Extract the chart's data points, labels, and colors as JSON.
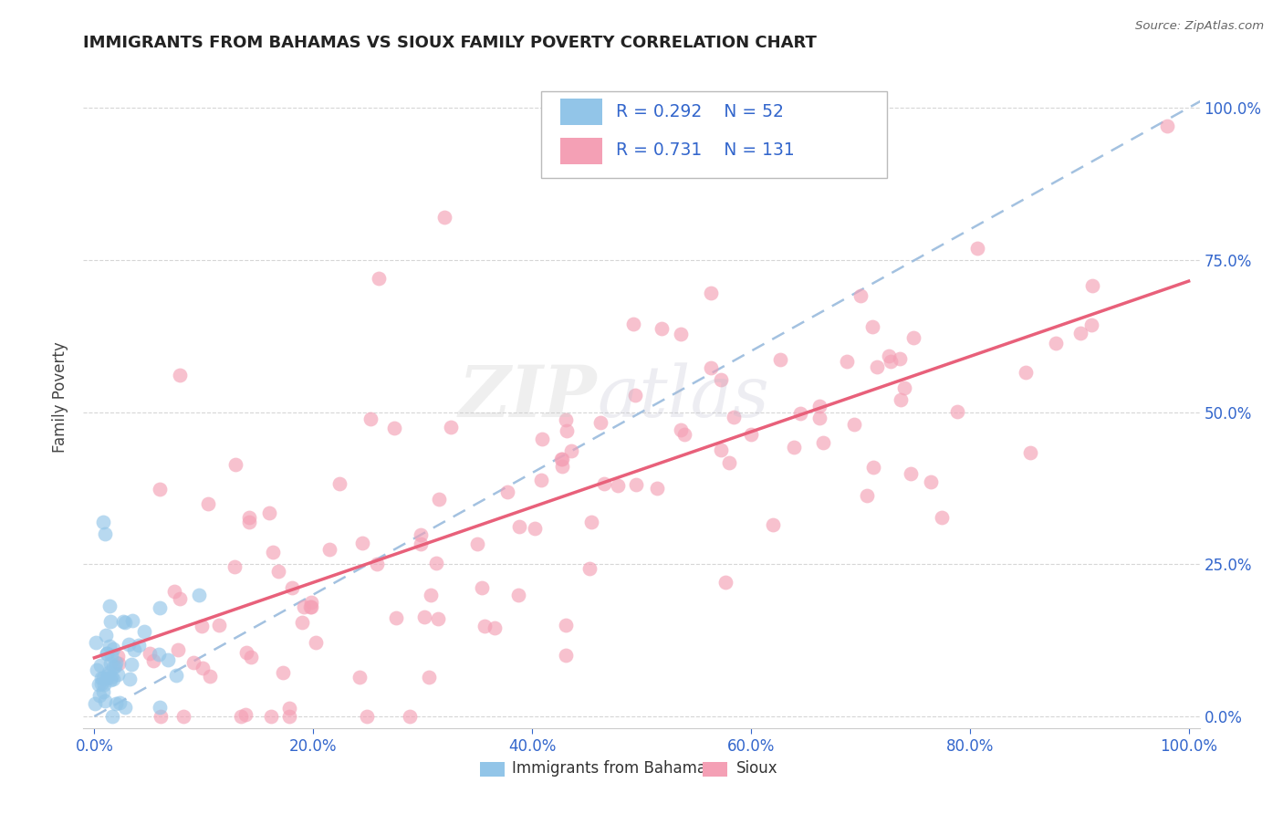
{
  "title": "IMMIGRANTS FROM BAHAMAS VS SIOUX FAMILY POVERTY CORRELATION CHART",
  "source": "Source: ZipAtlas.com",
  "ylabel": "Family Poverty",
  "series1_label": "Immigrants from Bahamas",
  "series2_label": "Sioux",
  "series1_color": "#92C5E8",
  "series2_color": "#F4A0B5",
  "series1_R": 0.292,
  "series1_N": 52,
  "series2_R": 0.731,
  "series2_N": 131,
  "tick_color": "#3366CC",
  "watermark_zip": "ZIP",
  "watermark_atlas": "atlas",
  "background_color": "#FFFFFF",
  "dashed_line_color": "#99BBDD",
  "pink_line_color": "#E8607A",
  "blue_trend_color": "#5588BB"
}
